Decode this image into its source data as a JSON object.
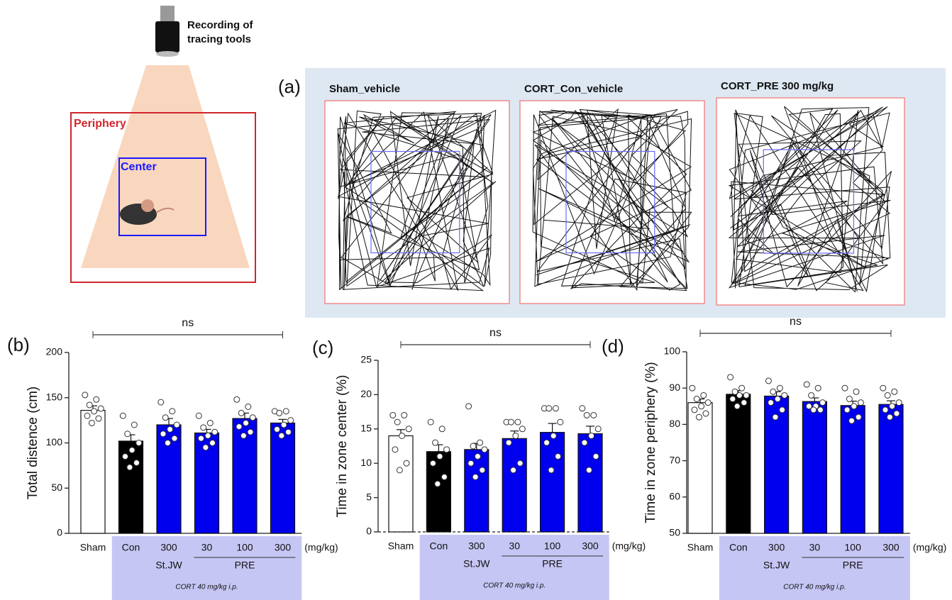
{
  "diagram": {
    "camera_label": [
      "Recording of",
      "tracing tools"
    ],
    "periphery_label": "Periphery",
    "center_label": "Center"
  },
  "panel_a": {
    "label": "(a)",
    "arenas": [
      "Sham_vehicle",
      "CORT_Con_vehicle",
      "CORT_PRE 300 mg/kg"
    ]
  },
  "chart_data": [
    {
      "type": "bar",
      "panel": "(b)",
      "y_label": "Total distence (cm)",
      "categories": [
        "Sham",
        "Con",
        "300",
        "30",
        "100",
        "300"
      ],
      "bar_colors": [
        "#ffffff",
        "#000000",
        "#0000ee",
        "#0000ee",
        "#0000ee",
        "#0000ee"
      ],
      "values": [
        136,
        102,
        120,
        111,
        127,
        122
      ],
      "errors": [
        5,
        7,
        7,
        4,
        6,
        4
      ],
      "points": [
        [
          153,
          148,
          142,
          138,
          135,
          130,
          127,
          122
        ],
        [
          130,
          120,
          110,
          100,
          92,
          85,
          78,
          73
        ],
        [
          145,
          135,
          128,
          120,
          115,
          110,
          105,
          100
        ],
        [
          130,
          122,
          117,
          112,
          108,
          105,
          100,
          95
        ],
        [
          148,
          140,
          133,
          128,
          122,
          118,
          112,
          108
        ],
        [
          135,
          135,
          133,
          125,
          120,
          115,
          112,
          108
        ]
      ],
      "ylim": [
        0,
        200
      ],
      "yticks": [
        0,
        50,
        100,
        150,
        200
      ],
      "significance": "ns",
      "unit_label": "(mg/kg)",
      "group_labels": [
        "St.JW",
        "PRE"
      ],
      "treatment": "CORT 40 mg/kg i.p.",
      "baseline_dashed": false
    },
    {
      "type": "bar",
      "panel": "(c)",
      "y_label": "Time in zone center (%)",
      "categories": [
        "Sham",
        "Con",
        "300",
        "30",
        "100",
        "300"
      ],
      "bar_colors": [
        "#ffffff",
        "#000000",
        "#0000ee",
        "#0000ee",
        "#0000ee",
        "#0000ee"
      ],
      "values": [
        14,
        11.7,
        12,
        13.6,
        14.5,
        14.3
      ],
      "errors": [
        0.9,
        1,
        0.9,
        1.1,
        1.3,
        1.1
      ],
      "points": [
        [
          17,
          17,
          16,
          15,
          14,
          12,
          10,
          9
        ],
        [
          16,
          15,
          13,
          12,
          11,
          10,
          8,
          7
        ],
        [
          18.3,
          13,
          12.5,
          12,
          11,
          10,
          9,
          8
        ],
        [
          16,
          16,
          16,
          15,
          14,
          13,
          10,
          9
        ],
        [
          18,
          18,
          18,
          16,
          14,
          13,
          11,
          9
        ],
        [
          18,
          17,
          17,
          15,
          14,
          13,
          11,
          9
        ]
      ],
      "ylim": [
        0,
        25
      ],
      "yticks": [
        0,
        5,
        10,
        15,
        20,
        25
      ],
      "significance": "ns",
      "unit_label": "(mg/kg)",
      "group_labels": [
        "St.JW",
        "PRE"
      ],
      "treatment": "CORT 40 mg/kg i.p.",
      "baseline_dashed": true
    },
    {
      "type": "bar",
      "panel": "(d)",
      "y_label": "Time in zone periphery (%)",
      "categories": [
        "Sham",
        "Con",
        "300",
        "30",
        "100",
        "300"
      ],
      "bar_colors": [
        "#ffffff",
        "#000000",
        "#0000ee",
        "#0000ee",
        "#0000ee",
        "#0000ee"
      ],
      "values": [
        86,
        88.3,
        87.8,
        86.3,
        85.2,
        85.5
      ],
      "errors": [
        1,
        1,
        1.2,
        1,
        1.2,
        1
      ],
      "points": [
        [
          90,
          88,
          87,
          86,
          85,
          84,
          83,
          82
        ],
        [
          93,
          90,
          89,
          88,
          88,
          87,
          86,
          85
        ],
        [
          92,
          90,
          89,
          88,
          87,
          86,
          84,
          82
        ],
        [
          91,
          90,
          88,
          86,
          85,
          85,
          84,
          84
        ],
        [
          90,
          89,
          87,
          86,
          85,
          84,
          82,
          81
        ],
        [
          90,
          89,
          88,
          86,
          85,
          84,
          83,
          82
        ]
      ],
      "ylim": [
        50,
        100
      ],
      "yticks": [
        50,
        60,
        70,
        80,
        90,
        100
      ],
      "significance": "ns",
      "unit_label": "(mg/kg)",
      "group_labels": [
        "St.JW",
        "PRE"
      ],
      "treatment": "CORT 40 mg/kg i.p.",
      "baseline_dashed": false
    }
  ]
}
